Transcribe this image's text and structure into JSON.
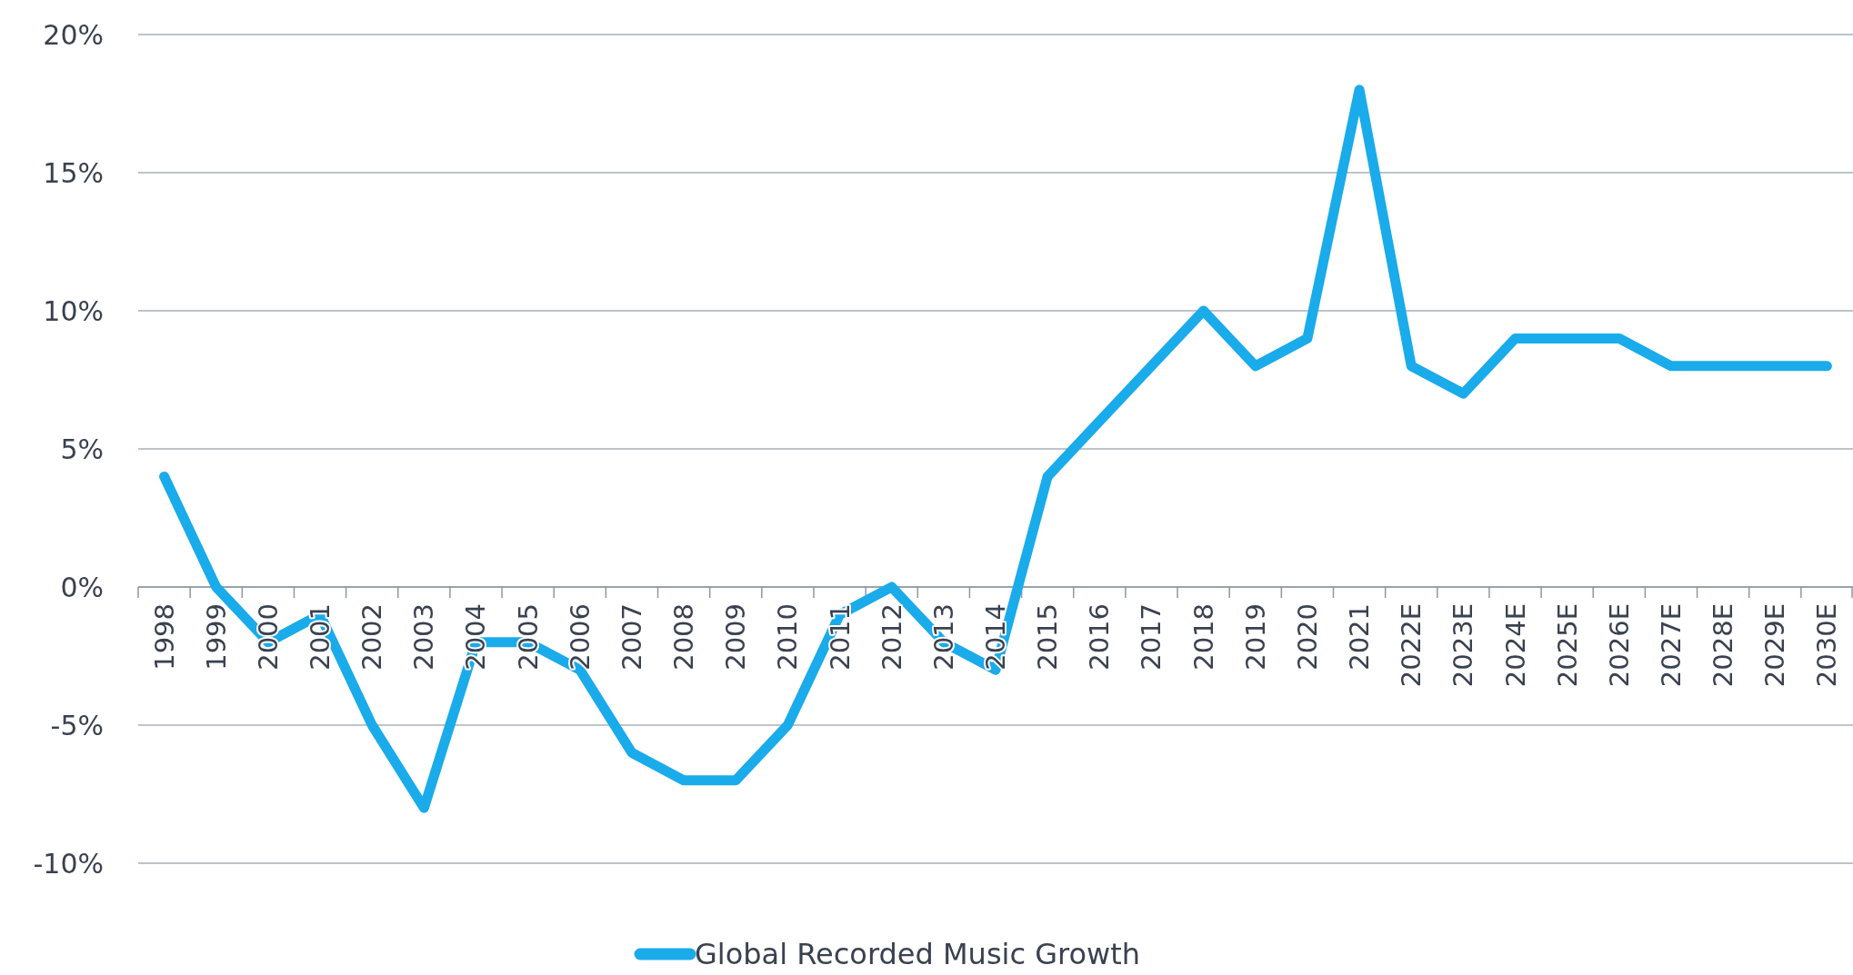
{
  "chart_data": {
    "type": "line",
    "categories": [
      "1998",
      "1999",
      "2000",
      "2001",
      "2002",
      "2003",
      "2004",
      "2005",
      "2006",
      "2007",
      "2008",
      "2009",
      "2010",
      "2011",
      "2012",
      "2013",
      "2014",
      "2015",
      "2016",
      "2017",
      "2018",
      "2019",
      "2020",
      "2021",
      "2022E",
      "2023E",
      "2024E",
      "2025E",
      "2026E",
      "2027E",
      "2028E",
      "2029E",
      "2030E"
    ],
    "series": [
      {
        "name": "Global Recorded Music Growth",
        "color": "#1aabeb",
        "values": [
          4,
          0,
          -2,
          -1,
          -5,
          -8,
          -2,
          -2,
          -3,
          -6,
          -7,
          -7,
          -5,
          -1,
          0,
          -2,
          -3,
          4,
          6,
          8,
          10,
          8,
          9,
          18,
          8,
          7,
          9,
          9,
          9,
          8,
          8,
          8,
          8
        ]
      }
    ],
    "ylim": [
      -10,
      20
    ],
    "yticks": [
      {
        "value": -10,
        "label": "-10%"
      },
      {
        "value": -5,
        "label": "-5%"
      },
      {
        "value": 0,
        "label": "0%"
      },
      {
        "value": 5,
        "label": "5%"
      },
      {
        "value": 10,
        "label": "10%"
      },
      {
        "value": 15,
        "label": "15%"
      },
      {
        "value": 20,
        "label": "20%"
      }
    ],
    "grid": "y",
    "legend": "bottom",
    "line_style": "solid"
  }
}
